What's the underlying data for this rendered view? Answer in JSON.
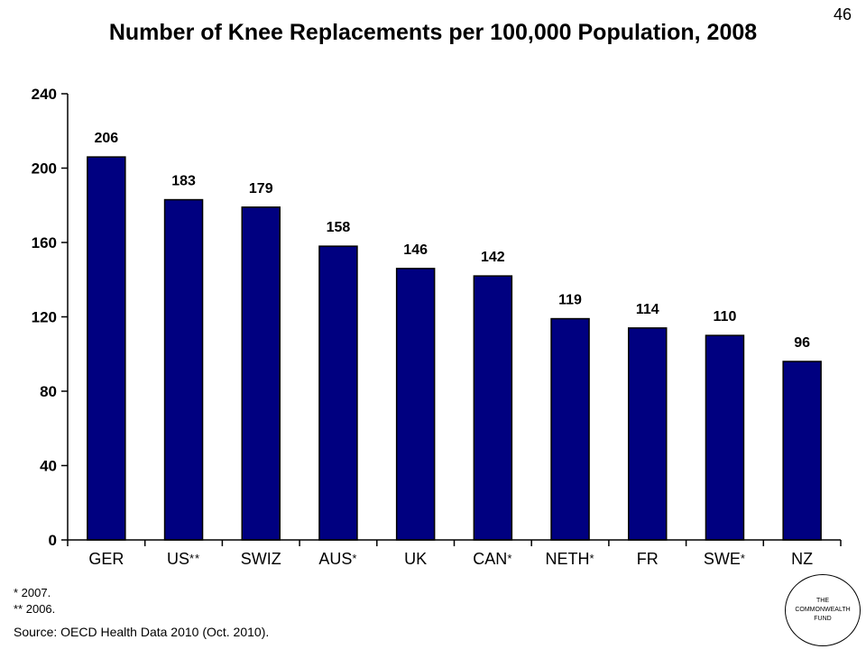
{
  "slide_number": "46",
  "chart_data": {
    "type": "bar",
    "title": "Number of Knee Replacements per 100,000 Population, 2008",
    "categories": [
      {
        "name": "GER",
        "suffix": ""
      },
      {
        "name": "US",
        "suffix": "**"
      },
      {
        "name": "SWIZ",
        "suffix": ""
      },
      {
        "name": "AUS",
        "suffix": "*"
      },
      {
        "name": "UK",
        "suffix": ""
      },
      {
        "name": "CAN",
        "suffix": "*"
      },
      {
        "name": "NETH",
        "suffix": "*"
      },
      {
        "name": "FR",
        "suffix": ""
      },
      {
        "name": "SWE",
        "suffix": "*"
      },
      {
        "name": "NZ",
        "suffix": ""
      }
    ],
    "values": [
      206,
      183,
      179,
      158,
      146,
      142,
      119,
      114,
      110,
      96
    ],
    "ylim": [
      0,
      240
    ],
    "yticks": [
      0,
      40,
      80,
      120,
      160,
      200,
      240
    ],
    "bar_color": "#000080",
    "grid": false,
    "legend": "none"
  },
  "footnotes": [
    "* 2007.",
    "** 2006."
  ],
  "source": "Source: OECD Health Data 2010 (Oct. 2010).",
  "logo": {
    "lines": [
      "THE",
      "COMMONWEALTH",
      "FUND"
    ]
  }
}
